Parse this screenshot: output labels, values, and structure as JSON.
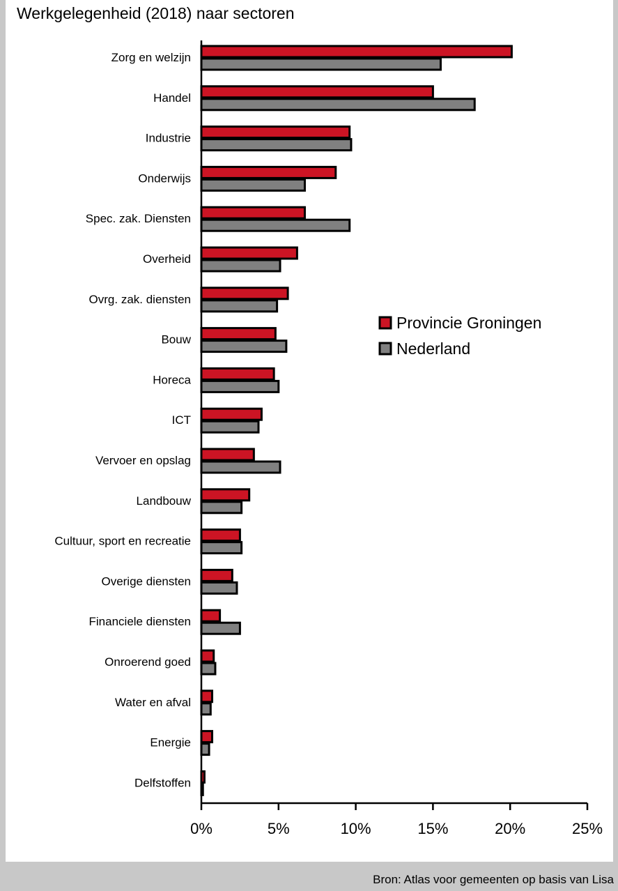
{
  "chart_data": {
    "type": "bar",
    "orientation": "horizontal",
    "title": "Werkgelegenheid (2018) naar sectoren",
    "categories": [
      "Zorg en welzijn",
      "Handel",
      "Industrie",
      "Onderwijs",
      "Spec. zak. Diensten",
      "Overheid",
      "Ovrg. zak. diensten",
      "Bouw",
      "Horeca",
      "ICT",
      "Vervoer en opslag",
      "Landbouw",
      "Cultuur, sport en recreatie",
      "Overige diensten",
      "Financiele diensten",
      "Onroerend goed",
      "Water en afval",
      "Energie",
      "Delfstoffen"
    ],
    "series": [
      {
        "name": "Provincie Groningen",
        "color": "#cc1424",
        "values": [
          20.1,
          15.0,
          9.6,
          8.7,
          6.7,
          6.2,
          5.6,
          4.8,
          4.7,
          3.9,
          3.4,
          3.1,
          2.5,
          2.0,
          1.2,
          0.8,
          0.7,
          0.7,
          0.2
        ]
      },
      {
        "name": "Nederland",
        "color": "#808080",
        "values": [
          15.5,
          17.7,
          9.7,
          6.7,
          9.6,
          5.1,
          4.9,
          5.5,
          5.0,
          3.7,
          5.1,
          2.6,
          2.6,
          2.3,
          2.5,
          0.9,
          0.6,
          0.5,
          0.1
        ]
      }
    ],
    "xlim": [
      0,
      25
    ],
    "xticks": [
      "0%",
      "5%",
      "10%",
      "15%",
      "20%",
      "25%"
    ],
    "xlabel": "",
    "ylabel": "",
    "grid": false,
    "legend_position": "center-right"
  },
  "source_note": "Bron: Atlas voor gemeenten op basis van Lisa"
}
